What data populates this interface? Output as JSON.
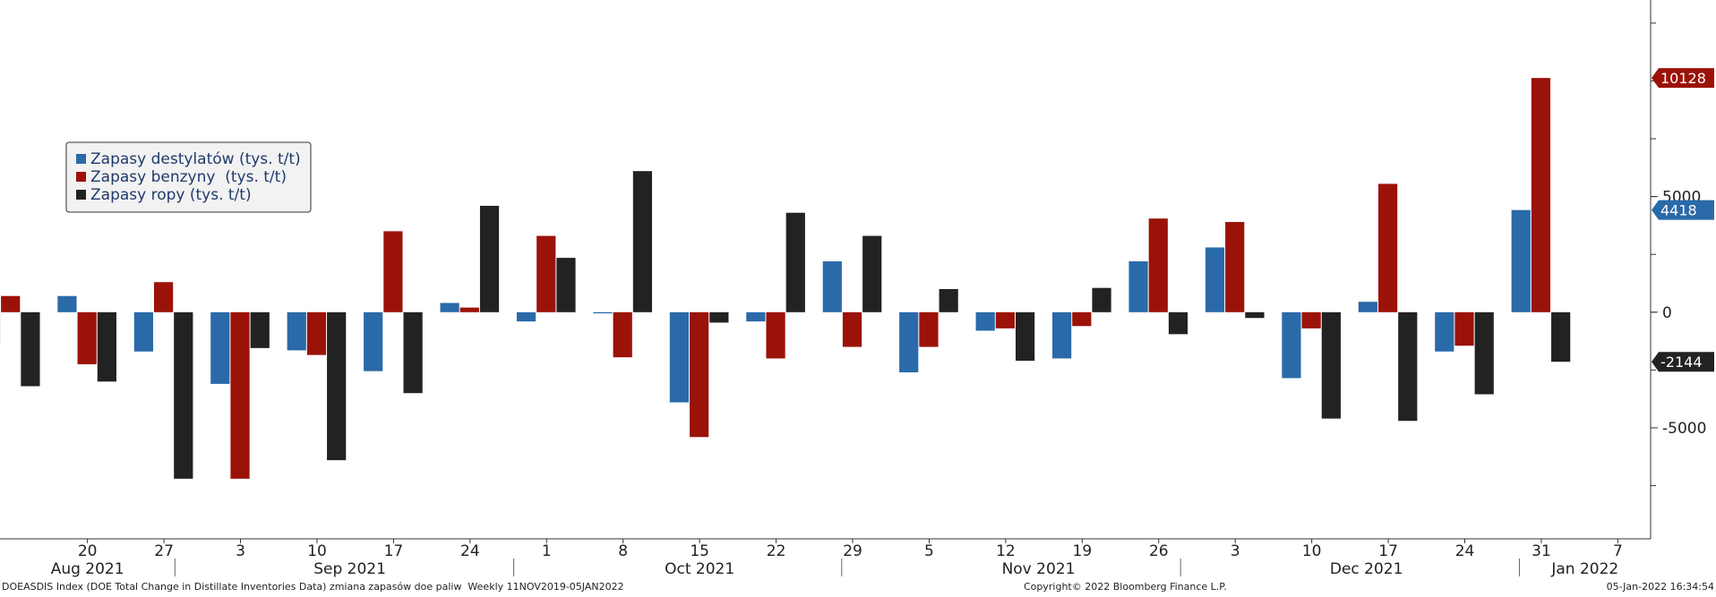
{
  "chart_data": {
    "type": "bar",
    "x": [
      "2021-08-13",
      "2021-08-20",
      "2021-08-27",
      "2021-09-03",
      "2021-09-10",
      "2021-09-17",
      "2021-09-24",
      "2021-10-01",
      "2021-10-08",
      "2021-10-15",
      "2021-10-22",
      "2021-10-29",
      "2021-11-05",
      "2021-11-12",
      "2021-11-19",
      "2021-11-26",
      "2021-12-03",
      "2021-12-10",
      "2021-12-17",
      "2021-12-24",
      "2021-12-31"
    ],
    "series": [
      {
        "name": "Zapasy destylatów (tys. t/t)",
        "color": "#2a6aa9",
        "values": [
          -1400,
          700,
          -1700,
          -3100,
          -1650,
          -2550,
          400,
          -400,
          -50,
          -3900,
          -400,
          2200,
          -2600,
          -800,
          -2000,
          2200,
          2800,
          -2850,
          450,
          -1700,
          4418
        ]
      },
      {
        "name": "Zapasy benzyny  (tys. t/t)",
        "color": "#9b1209",
        "values": [
          700,
          -2250,
          1300,
          -7200,
          -1850,
          3500,
          200,
          3300,
          -1950,
          -5400,
          -2000,
          -1500,
          -1500,
          -700,
          -600,
          4050,
          3900,
          -700,
          5550,
          -1450,
          10128
        ]
      },
      {
        "name": "Zapasy ropy (tys. t/t)",
        "color": "#222222",
        "values": [
          -3200,
          -3000,
          -7200,
          -1550,
          -6400,
          -3500,
          4600,
          2350,
          6100,
          -450,
          4300,
          3300,
          1000,
          -2100,
          1050,
          -950,
          -250,
          -4600,
          -4700,
          -3550,
          -2144
        ]
      }
    ],
    "ylim": [
      -9800,
      13500
    ],
    "y_ticks": [
      -5000,
      0,
      5000
    ],
    "y_tick_labels": [
      "-5000",
      "0",
      "5000"
    ],
    "x_tick_labels": [
      "20",
      "27",
      "3",
      "10",
      "17",
      "24",
      "1",
      "8",
      "15",
      "22",
      "29",
      "5",
      "12",
      "19",
      "26",
      "3",
      "10",
      "17",
      "24",
      "31",
      "7"
    ],
    "x_tick_dates": [
      "2021-08-20",
      "2021-08-27",
      "2021-09-03",
      "2021-09-10",
      "2021-09-17",
      "2021-09-24",
      "2021-10-01",
      "2021-10-08",
      "2021-10-15",
      "2021-10-22",
      "2021-10-29",
      "2021-11-05",
      "2021-11-12",
      "2021-11-19",
      "2021-11-26",
      "2021-12-03",
      "2021-12-10",
      "2021-12-17",
      "2021-12-24",
      "2021-12-31",
      "2022-01-07"
    ],
    "months": [
      {
        "label": "Aug 2021",
        "date": "2021-08-20"
      },
      {
        "label": "Sep 2021",
        "date": "2021-09-13"
      },
      {
        "label": "Oct 2021",
        "date": "2021-10-15"
      },
      {
        "label": "Nov 2021",
        "date": "2021-11-15"
      },
      {
        "label": "Dec 2021",
        "date": "2021-12-15"
      },
      {
        "label": "Jan 2022",
        "date": "2022-01-04"
      }
    ],
    "month_boundaries": [
      "2021-08-28",
      "2021-09-28",
      "2021-10-28",
      "2021-11-28",
      "2021-12-29"
    ],
    "x_range": [
      "2021-08-12",
      "2022-01-10"
    ],
    "last_value_badges": [
      {
        "value": 10128,
        "label": "10128",
        "color": "#9b1209"
      },
      {
        "value": 4418,
        "label": "4418",
        "color": "#2a6aa9"
      },
      {
        "value": -2144,
        "label": "-2144",
        "color": "#222222"
      }
    ],
    "legend_position": "top-left",
    "grid": false,
    "footer": {
      "left": "DOEASDIS Index (DOE Total Change in Distillate Inventories Data) zmiana zapasów doe paliw  Weekly 11NOV2019-05JAN2022",
      "center": "Copyright© 2022 Bloomberg Finance L.P.",
      "right": "05-Jan-2022 16:34:54"
    }
  }
}
